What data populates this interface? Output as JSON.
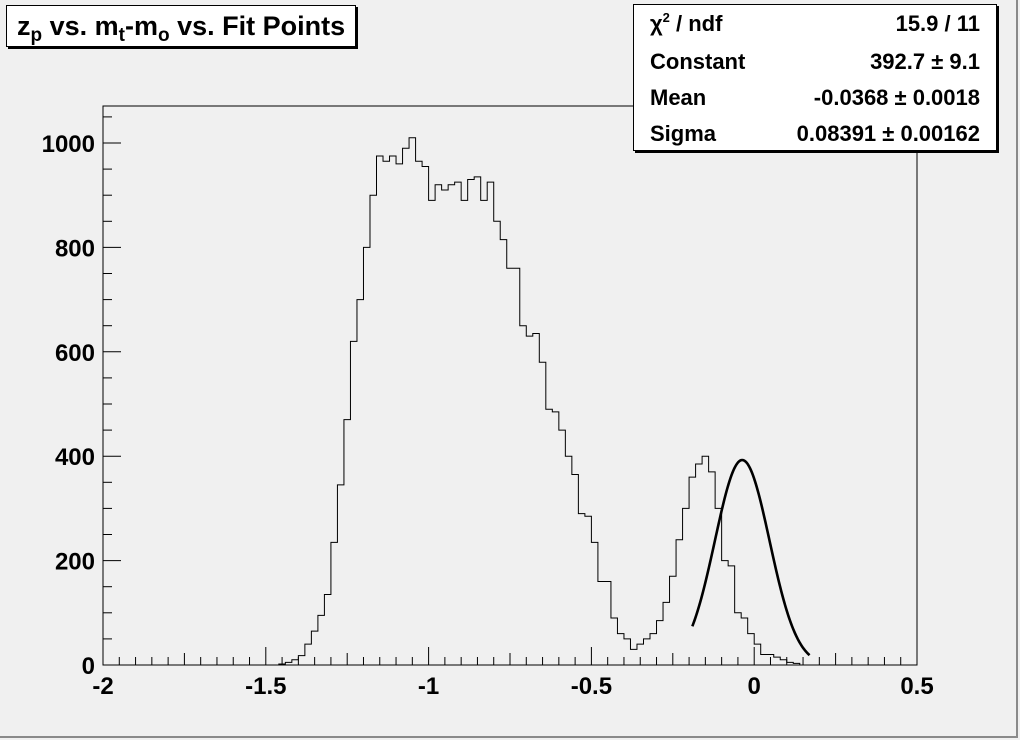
{
  "title": {
    "main": "z",
    "sub1": "p",
    "mid1": " vs. m",
    "sub2": "t",
    "mid2": "-m",
    "sub3": "o",
    "tail": " vs. Fit Points"
  },
  "stats": [
    {
      "label_pre": "χ",
      "label_sup": "2",
      "label_post": " / ndf",
      "value": "15.9 / 11"
    },
    {
      "label_pre": "Constant",
      "label_sup": "",
      "label_post": "",
      "value": "392.7 ± 9.1"
    },
    {
      "label_pre": "Mean",
      "label_sup": "",
      "label_post": "",
      "value": "-0.0368 ± 0.0018"
    },
    {
      "label_pre": "Sigma",
      "label_sup": "",
      "label_post": "",
      "value": "0.08391 ± 0.00162"
    }
  ],
  "chart_data": {
    "type": "histogram",
    "title": "zp vs. mt-mo vs. Fit Points",
    "xlim": [
      -2,
      0.5
    ],
    "ylim": [
      0,
      1050
    ],
    "xticks": [
      -2,
      -1.5,
      -1,
      -0.5,
      0,
      0.5
    ],
    "xtick_labels": [
      "-2",
      "-1.5",
      "-1",
      "-0.5",
      "0",
      "0.5"
    ],
    "yticks": [
      0,
      200,
      400,
      600,
      800,
      1000
    ],
    "ytick_labels": [
      "0",
      "200",
      "400",
      "600",
      "800",
      "1000"
    ],
    "bin_width": 0.02,
    "bin_start": -1.46,
    "counts": [
      2,
      5,
      10,
      18,
      40,
      65,
      95,
      135,
      235,
      345,
      470,
      620,
      700,
      800,
      900,
      975,
      965,
      975,
      960,
      990,
      1010,
      965,
      955,
      890,
      920,
      910,
      920,
      925,
      890,
      930,
      935,
      890,
      925,
      850,
      815,
      760,
      760,
      650,
      630,
      635,
      580,
      490,
      485,
      450,
      400,
      365,
      290,
      285,
      235,
      160,
      160,
      90,
      60,
      50,
      30,
      40,
      50,
      60,
      85,
      120,
      170,
      240,
      300,
      360,
      385,
      400,
      370,
      300,
      200,
      190,
      100,
      90,
      60,
      40,
      20,
      20,
      15,
      10,
      5,
      3
    ],
    "fit": {
      "type": "gaussian",
      "constant": 392.7,
      "mean": -0.0368,
      "sigma": 0.08391,
      "range": [
        -0.19,
        0.17
      ]
    },
    "grid": false,
    "legend": "top-right stats box"
  }
}
